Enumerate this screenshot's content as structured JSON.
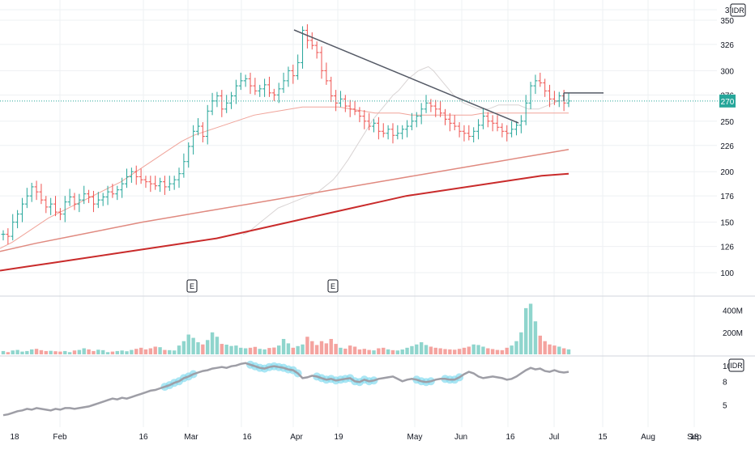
{
  "colors": {
    "up": "#26a69a",
    "up_fill": "#8fd5cd",
    "down": "#ef5350",
    "down_fill": "#f4a39f",
    "ma_short": "#d9d4d4",
    "ma_mid": "#f0a49a",
    "ma_long1": "#e08a80",
    "ma_long2": "#c92b2b",
    "price_line": "#26a69a",
    "trendline": "#555a66",
    "indicator_line": "#9e9ea6",
    "indicator_highlight": "#86dcef",
    "grid": "#eef0f3",
    "axis_text": "#131722"
  },
  "chart_data": [
    {
      "type": "ohlc",
      "currency_label": "IDR",
      "last_price_label": "270",
      "y_ticks": [
        "100",
        "126",
        "150",
        "176",
        "200",
        "226",
        "250",
        "276",
        "300",
        "326",
        "350",
        "37"
      ],
      "ylim": [
        80,
        370
      ],
      "x_ticks": [
        "18",
        "Feb",
        "16",
        "Mar",
        "16",
        "Apr",
        "19",
        "May",
        "Jun",
        "16",
        "Jul",
        "15",
        "Aug",
        "18",
        "Sep"
      ],
      "earnings_markers": [
        "E",
        "E"
      ],
      "earnings_dates": [
        "2024-03-01",
        "2024-04-29"
      ],
      "close": [
        138,
        136,
        150,
        158,
        168,
        176,
        185,
        180,
        172,
        165,
        168,
        160,
        158,
        170,
        175,
        168,
        172,
        178,
        175,
        168,
        172,
        175,
        180,
        178,
        182,
        188,
        195,
        200,
        195,
        192,
        190,
        188,
        186,
        190,
        185,
        188,
        192,
        198,
        210,
        225,
        240,
        245,
        235,
        260,
        270,
        275,
        262,
        268,
        275,
        285,
        290,
        292,
        285,
        280,
        282,
        286,
        278,
        276,
        282,
        290,
        300,
        295,
        308,
        340,
        330,
        325,
        318,
        300,
        290,
        275,
        268,
        272,
        265,
        262,
        260,
        255,
        250,
        245,
        248,
        240,
        238,
        242,
        236,
        238,
        242,
        245,
        250,
        255,
        262,
        268,
        265,
        262,
        258,
        252,
        248,
        245,
        240,
        238,
        235,
        240,
        246,
        255,
        250,
        248,
        244,
        240,
        238,
        242,
        246,
        250,
        268,
        285,
        290,
        288,
        280,
        272,
        270,
        275,
        268,
        270
      ],
      "series_ma": [
        {
          "values": [
            138,
            140,
            144,
            148,
            152,
            156,
            160,
            164,
            166,
            168,
            170,
            172,
            174,
            176,
            178,
            180,
            184,
            188,
            192,
            198,
            205,
            212,
            220,
            228,
            236,
            244,
            252,
            258,
            264,
            270,
            276,
            280,
            286,
            292,
            296,
            300,
            302,
            304,
            300,
            294,
            288,
            282,
            276,
            272,
            268,
            266,
            264,
            262,
            262,
            262,
            264,
            266,
            266,
            266,
            266,
            266,
            264,
            262,
            262,
            262,
            264,
            266,
            268,
            270,
            270,
            272
          ]
        },
        {
          "values": [
            124,
            130,
            138,
            146,
            154,
            160,
            166,
            172,
            178,
            184,
            190,
            198,
            206,
            214,
            222,
            230,
            236,
            240,
            244,
            248,
            252,
            256,
            258,
            260,
            262,
            264,
            264,
            264,
            264,
            262,
            260,
            258,
            258,
            258,
            256,
            256,
            256,
            256,
            256,
            256,
            258,
            258,
            258,
            258,
            258,
            258,
            258,
            258
          ]
        },
        {
          "values": [
            121,
            129,
            136,
            143,
            150,
            156,
            162,
            168,
            174,
            180,
            186,
            192,
            198,
            204,
            210,
            216,
            222
          ]
        },
        {
          "values": [
            102,
            106,
            110,
            114,
            118,
            122,
            126,
            130,
            134,
            140,
            146,
            152,
            158,
            164,
            170,
            176,
            180,
            184,
            188,
            192,
            196,
            198
          ]
        }
      ],
      "trendline": {
        "from": [
          "2024-04-19",
          352
        ],
        "to": [
          "2024-07-05",
          260
        ]
      },
      "horizontal_ray": {
        "value": 278,
        "from": "2024-07-16",
        "to": "2024-07-31"
      }
    },
    {
      "type": "bar",
      "name": "volume",
      "y_ticks": [
        "200M",
        "400M"
      ],
      "ylim": [
        0,
        500
      ],
      "values": [
        30,
        20,
        35,
        40,
        25,
        30,
        45,
        50,
        38,
        30,
        32,
        28,
        25,
        30,
        20,
        35,
        40,
        55,
        45,
        30,
        42,
        38,
        20,
        25,
        30,
        35,
        28,
        40,
        50,
        60,
        45,
        55,
        70,
        65,
        40,
        38,
        35,
        80,
        120,
        180,
        150,
        110,
        90,
        130,
        200,
        160,
        95,
        88,
        76,
        80,
        60,
        55,
        60,
        68,
        50,
        45,
        58,
        62,
        80,
        140,
        100,
        60,
        75,
        90,
        160,
        120,
        85,
        120,
        100,
        140,
        95,
        60,
        52,
        80,
        70,
        45,
        50,
        40,
        36,
        55,
        60,
        45,
        38,
        35,
        44,
        60,
        75,
        90,
        110,
        85,
        70,
        60,
        55,
        48,
        45,
        42,
        50,
        60,
        70,
        90,
        85,
        70,
        55,
        48,
        40,
        38,
        60,
        80,
        120,
        200,
        420,
        460,
        300,
        170,
        120,
        90,
        80,
        70,
        55,
        45
      ]
    },
    {
      "type": "line",
      "name": "indicator",
      "currency_label": "IDR",
      "y_ticks": [
        "5",
        "8",
        "10"
      ],
      "ylim": [
        3,
        11
      ],
      "values": [
        3.7,
        3.8,
        4.0,
        4.2,
        4.3,
        4.5,
        4.4,
        4.6,
        4.5,
        4.4,
        4.3,
        4.5,
        4.4,
        4.6,
        4.6,
        4.5,
        4.6,
        4.7,
        4.8,
        5.0,
        5.2,
        5.4,
        5.6,
        5.8,
        5.7,
        5.9,
        5.8,
        6.0,
        6.2,
        6.4,
        6.6,
        6.8,
        6.9,
        7.1,
        7.3,
        7.5,
        7.8,
        8.0,
        8.4,
        8.6,
        8.9,
        9.1,
        9.3,
        9.4,
        9.6,
        9.7,
        9.8,
        9.7,
        9.9,
        10.0,
        10.2,
        10.3,
        10.1,
        9.9,
        9.7,
        9.6,
        9.8,
        9.9,
        9.8,
        9.7,
        9.5,
        9.4,
        9.0,
        8.4,
        8.5,
        8.7,
        8.6,
        8.4,
        8.2,
        8.3,
        8.1,
        8.2,
        8.3,
        8.4,
        8.0,
        7.9,
        8.2,
        8.0,
        8.1,
        8.3,
        8.4,
        8.5,
        8.6,
        8.3,
        8.0,
        8.2,
        8.3,
        8.2,
        8.0,
        7.9,
        8.0,
        8.2,
        8.3,
        8.3,
        8.2,
        8.2,
        8.5,
        8.9,
        9.2,
        9.0,
        8.6,
        8.4,
        8.5,
        8.6,
        8.5,
        8.4,
        8.2,
        8.3,
        8.6,
        9.0,
        9.4,
        9.7,
        9.5,
        9.6,
        9.3,
        9.2,
        9.4,
        9.2,
        9.1,
        9.2
      ],
      "highlight_ranges": [
        [
          34,
          40
        ],
        [
          52,
          62
        ],
        [
          66,
          78
        ],
        [
          87,
          90
        ],
        [
          93,
          96
        ]
      ]
    }
  ]
}
